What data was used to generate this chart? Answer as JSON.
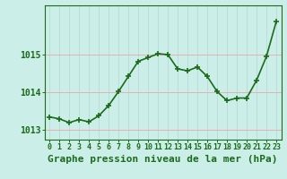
{
  "x": [
    0,
    1,
    2,
    3,
    4,
    5,
    6,
    7,
    8,
    9,
    10,
    11,
    12,
    13,
    14,
    15,
    16,
    17,
    18,
    19,
    20,
    21,
    22,
    23
  ],
  "y": [
    1013.35,
    1013.3,
    1013.2,
    1013.28,
    1013.22,
    1013.38,
    1013.65,
    1014.02,
    1014.42,
    1014.82,
    1014.92,
    1015.02,
    1015.0,
    1014.62,
    1014.57,
    1014.67,
    1014.42,
    1014.02,
    1013.78,
    1013.85,
    1013.85,
    1014.32,
    1014.95,
    1015.88
  ],
  "line_color": "#1a6b1a",
  "marker": "+",
  "marker_size": 4,
  "marker_lw": 1.2,
  "bg_color": "#cceee8",
  "grid_color": "#b0d8d0",
  "ylabel_ticks": [
    1013,
    1014,
    1015
  ],
  "ylim": [
    1012.75,
    1016.3
  ],
  "xlim": [
    -0.5,
    23.5
  ],
  "xtick_labels": [
    "0",
    "1",
    "2",
    "3",
    "4",
    "5",
    "6",
    "7",
    "8",
    "9",
    "10",
    "11",
    "12",
    "13",
    "14",
    "15",
    "16",
    "17",
    "18",
    "19",
    "20",
    "21",
    "22",
    "23"
  ],
  "tick_fontsize": 6,
  "tick_color": "#1a6b1a",
  "spine_color": "#1a6b1a",
  "title": "Graphe pression niveau de la mer (hPa)",
  "title_fontsize": 8,
  "title_color": "#1a6b1a",
  "line_width": 1.2,
  "grid_lw": 0.6
}
